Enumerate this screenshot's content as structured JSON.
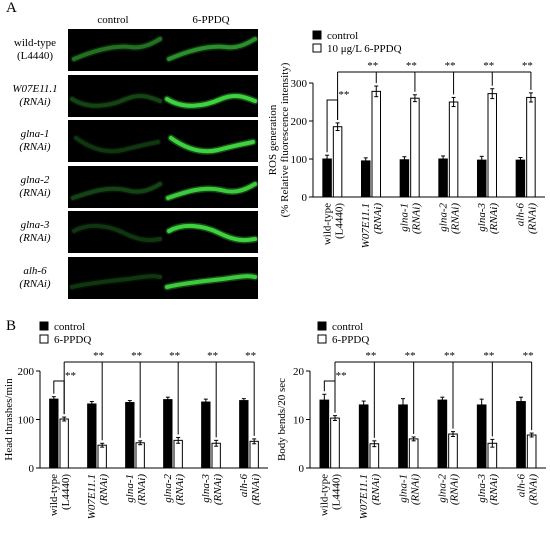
{
  "panel_a": {
    "letter": "A",
    "columns": [
      "control",
      "6-PPDQ"
    ],
    "rows": [
      {
        "gene": "wild-type",
        "sub": "(L4440)",
        "italic": false
      },
      {
        "gene": "W07E11.1",
        "sub": "(RNAi)",
        "italic": true
      },
      {
        "gene": "glna-1",
        "sub": "(RNAi)",
        "italic": true
      },
      {
        "gene": "glna-2",
        "sub": "(RNAi)",
        "italic": true
      },
      {
        "gene": "glna-3",
        "sub": "(RNAi)",
        "italic": true
      },
      {
        "gene": "alh-6",
        "sub": "(RNAi)",
        "italic": true
      }
    ],
    "micrograph_brightness": [
      [
        0.45,
        0.6
      ],
      [
        0.25,
        1.0
      ],
      [
        0.2,
        1.0
      ],
      [
        0.25,
        0.95
      ],
      [
        0.2,
        1.0
      ],
      [
        0.2,
        0.95
      ]
    ]
  },
  "panel_b": {
    "letter": "B"
  },
  "colors": {
    "control": "#000000",
    "treated": "#ffffff",
    "worm": "#3fd23f"
  },
  "chart_data": [
    {
      "type": "bar",
      "ylabel": "ROS generation",
      "ylabel2": "(% Relative fluorescence intensity)",
      "yticks": [
        0,
        100,
        200,
        300
      ],
      "ylim": [
        0,
        300
      ],
      "legend": [
        "control",
        "10 μg/L 6-PPDQ"
      ],
      "legend_position": "top-left",
      "categories": [
        {
          "gene": "wild-type",
          "sub": "(L4440)",
          "italic": false
        },
        {
          "gene": "W07E11.1",
          "sub": "(RNAi)",
          "italic": true
        },
        {
          "gene": "glna-1",
          "sub": "(RNAi)",
          "italic": true
        },
        {
          "gene": "glna-2",
          "sub": "(RNAi)",
          "italic": true
        },
        {
          "gene": "glna-3",
          "sub": "(RNAi)",
          "italic": true
        },
        {
          "gene": "alh-6",
          "sub": "(RNAi)",
          "italic": true
        }
      ],
      "series": [
        {
          "name": "control",
          "values": [
            100,
            95,
            98,
            100,
            97,
            97
          ],
          "errors": [
            10,
            8,
            8,
            8,
            10,
            7
          ]
        },
        {
          "name": "10 μg/L 6-PPDQ",
          "values": [
            185,
            278,
            260,
            250,
            272,
            262
          ],
          "errors": [
            10,
            14,
            9,
            12,
            13,
            12
          ]
        }
      ],
      "significance": "**"
    },
    {
      "type": "bar",
      "ylabel": "Head thrashes/min",
      "yticks": [
        0,
        100,
        200
      ],
      "ylim": [
        0,
        200
      ],
      "legend": [
        "control",
        "6-PPDQ"
      ],
      "legend_position": "top-left",
      "categories": [
        {
          "gene": "wild-type",
          "sub": "(L4440)",
          "italic": false
        },
        {
          "gene": "W07E11.1",
          "sub": "(RNAi)",
          "italic": true
        },
        {
          "gene": "glna-1",
          "sub": "(RNAi)",
          "italic": true
        },
        {
          "gene": "glna-2",
          "sub": "(RNAi)",
          "italic": true
        },
        {
          "gene": "glna-3",
          "sub": "(RNAi)",
          "italic": true
        },
        {
          "gene": "alh-6",
          "sub": "(RNAi)",
          "italic": true
        }
      ],
      "series": [
        {
          "name": "control",
          "values": [
            142,
            132,
            135,
            141,
            136,
            139
          ],
          "errors": [
            5,
            5,
            4,
            5,
            6,
            4
          ]
        },
        {
          "name": "6-PPDQ",
          "values": [
            101,
            47,
            52,
            57,
            51,
            55
          ],
          "errors": [
            4,
            4,
            4,
            6,
            6,
            5
          ]
        }
      ],
      "significance": "**"
    },
    {
      "type": "bar",
      "ylabel": "Body bends/20 sec",
      "yticks": [
        0,
        10,
        20
      ],
      "ylim": [
        0,
        20
      ],
      "legend": [
        "control",
        "6-PPDQ"
      ],
      "legend_position": "top-left",
      "categories": [
        {
          "gene": "wild-type",
          "sub": "(L4440)",
          "italic": false
        },
        {
          "gene": "W07E11.1",
          "sub": "(RNAi)",
          "italic": true
        },
        {
          "gene": "glna-1",
          "sub": "(RNAi)",
          "italic": true
        },
        {
          "gene": "glna-2",
          "sub": "(RNAi)",
          "italic": true
        },
        {
          "gene": "glna-3",
          "sub": "(RNAi)",
          "italic": true
        },
        {
          "gene": "alh-6",
          "sub": "(RNAi)",
          "italic": true
        }
      ],
      "series": [
        {
          "name": "control",
          "values": [
            14,
            13,
            13,
            14,
            13,
            13.7
          ],
          "errors": [
            1.2,
            0.8,
            1.3,
            0.6,
            1.2,
            0.9
          ]
        },
        {
          "name": "6-PPDQ",
          "values": [
            10.3,
            5,
            6,
            7,
            5.1,
            6.8
          ],
          "errors": [
            0.5,
            0.6,
            0.4,
            0.5,
            0.8,
            0.4
          ]
        }
      ],
      "significance": "**"
    }
  ]
}
